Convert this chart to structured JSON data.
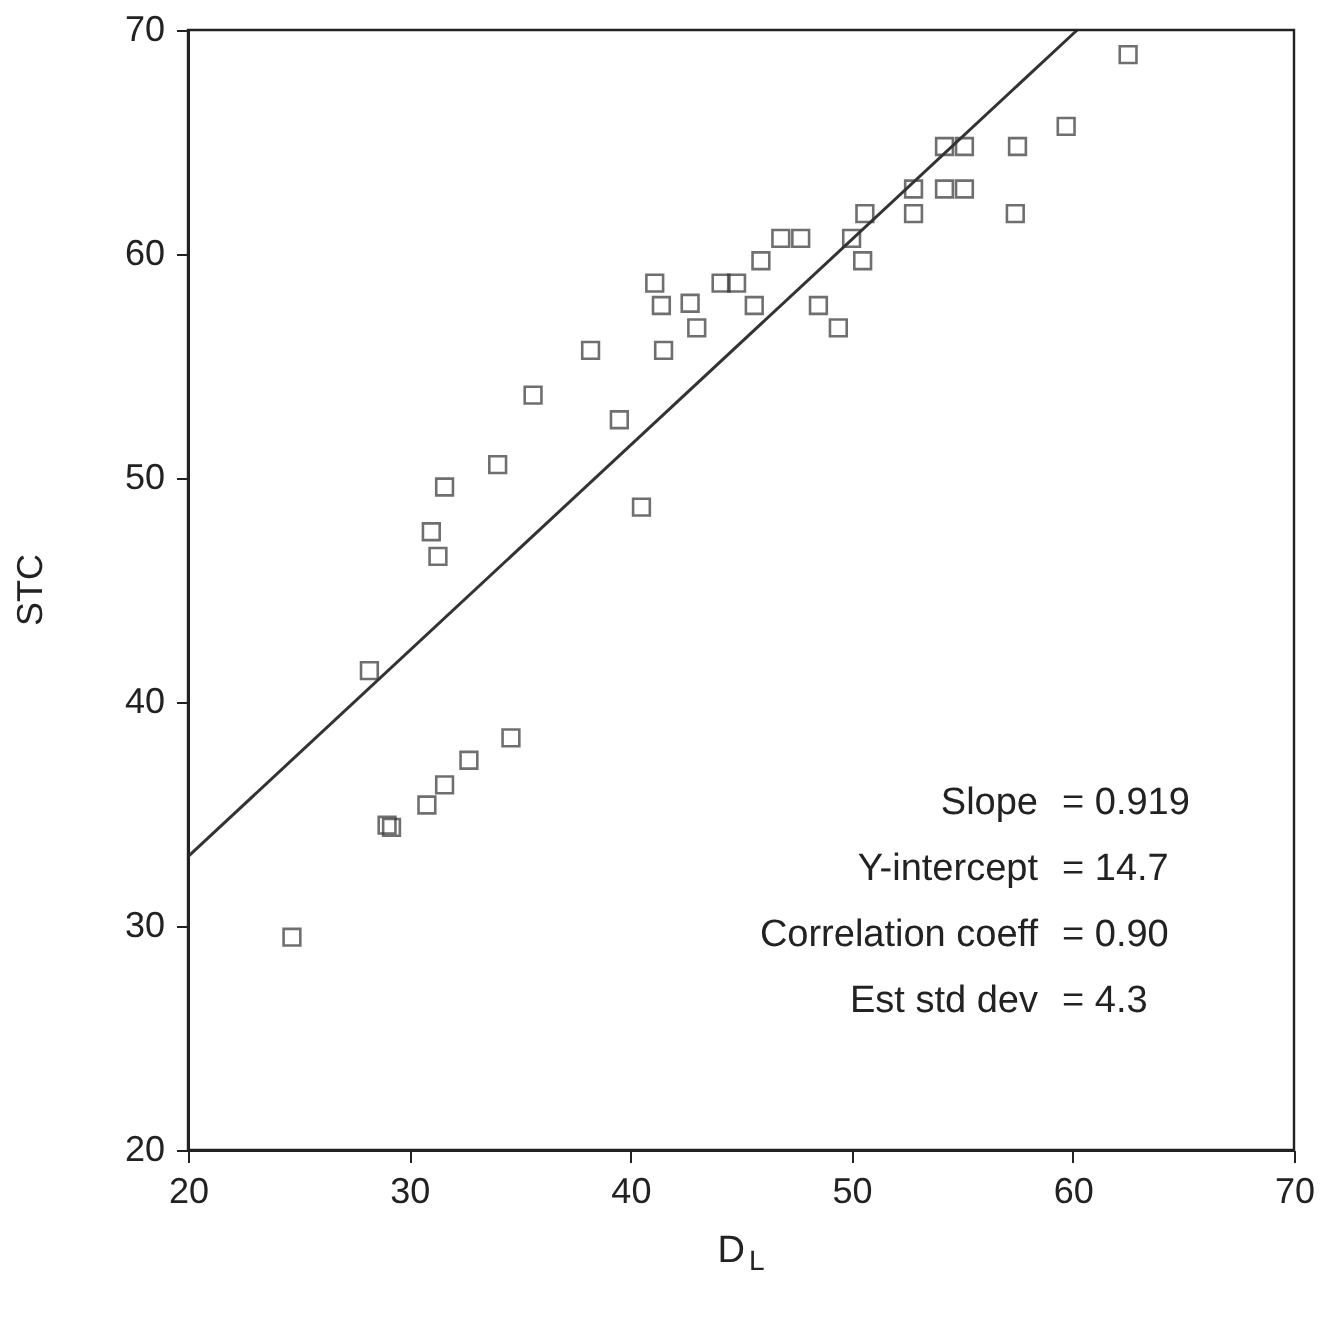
{
  "chart_data": {
    "type": "scatter",
    "xlabel": "D$_{L}$",
    "ylabel": "STC",
    "xlim": [
      20,
      70
    ],
    "ylim": [
      20,
      70
    ],
    "xticks": [
      20,
      30,
      40,
      50,
      60,
      70
    ],
    "yticks": [
      20,
      30,
      40,
      50,
      60,
      70
    ],
    "grid": false,
    "series": [
      {
        "type": "scatter",
        "color": "#333333",
        "marker": "square",
        "x": [
          24.7,
          29.0,
          29.2,
          30.8,
          31.6,
          32.7,
          34.6,
          28.2,
          31.0,
          31.3,
          31.6,
          34.0,
          35.6,
          38.2,
          39.5,
          40.5,
          41.5,
          41.1,
          41.4,
          42.7,
          43.0,
          44.1,
          44.8,
          45.6,
          45.9,
          46.8,
          47.7,
          48.5,
          49.4,
          50.0,
          50.6,
          50.5,
          52.8,
          52.8,
          54.2,
          55.1,
          54.2,
          55.1,
          57.5,
          57.4,
          59.7,
          62.5
        ],
        "values": [
          29.5,
          34.5,
          34.4,
          35.4,
          36.3,
          37.4,
          38.4,
          41.4,
          47.6,
          46.5,
          49.6,
          50.6,
          53.7,
          55.7,
          52.6,
          48.7,
          55.7,
          58.7,
          57.7,
          57.8,
          56.7,
          58.7,
          58.7,
          57.7,
          59.7,
          60.7,
          60.7,
          57.7,
          56.7,
          60.7,
          61.8,
          59.7,
          62.9,
          61.8,
          64.8,
          64.8,
          62.9,
          62.9,
          64.8,
          61.8,
          65.7,
          68.9
        ]
      },
      {
        "type": "line",
        "color": "#333333",
        "line_style": "solid",
        "marker": "none",
        "x": [
          20,
          60.2
        ],
        "values": [
          33.1,
          70.0
        ]
      }
    ],
    "annotations": [
      "Slope = 0.919",
      "Y-intercept = 14.7",
      "Correlation coeff = 0.90",
      "Est std dev = 4.3"
    ]
  }
}
